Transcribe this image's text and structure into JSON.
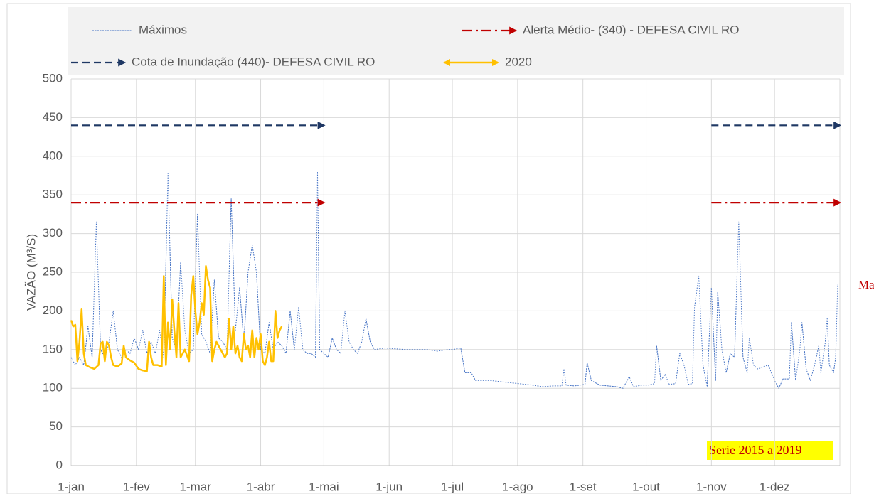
{
  "chart_data": {
    "type": "line",
    "ylabel": "VAZÃO (M³/S)",
    "xlim": [
      1,
      366
    ],
    "ylim": [
      0,
      500
    ],
    "yticks": [
      0,
      50,
      100,
      150,
      200,
      250,
      300,
      350,
      400,
      450,
      500
    ],
    "xticks": [
      {
        "value": 1,
        "label": "1-jan"
      },
      {
        "value": 32,
        "label": "1-fev"
      },
      {
        "value": 60,
        "label": "1-mar"
      },
      {
        "value": 91,
        "label": "1-abr"
      },
      {
        "value": 121,
        "label": "1-mai"
      },
      {
        "value": 152,
        "label": "1-jun"
      },
      {
        "value": 182,
        "label": "1-jul"
      },
      {
        "value": 213,
        "label": "1-ago"
      },
      {
        "value": 244,
        "label": "1-set"
      },
      {
        "value": 274,
        "label": "1-out"
      },
      {
        "value": 305,
        "label": "1-nov"
      },
      {
        "value": 335,
        "label": "1-dez"
      }
    ],
    "grid": true,
    "annotations": [
      "Max",
      "Serie 2015 a 2019"
    ],
    "series": [
      {
        "name": "Máximos",
        "color": "#4472c4",
        "style": "dotted",
        "x": [
          1,
          3,
          5,
          7,
          9,
          11,
          13,
          15,
          17,
          19,
          21,
          23,
          25,
          27,
          29,
          31,
          33,
          35,
          37,
          39,
          41,
          43,
          45,
          47,
          49,
          51,
          53,
          55,
          57,
          59,
          61,
          63,
          65,
          67,
          69,
          71,
          73,
          75,
          77,
          79,
          81,
          83,
          85,
          87,
          89,
          91,
          93,
          95,
          97,
          99,
          101,
          103,
          105,
          107,
          109,
          111,
          113,
          115,
          117,
          118,
          119,
          121,
          123,
          125,
          127,
          129,
          131,
          133,
          135,
          137,
          139,
          141,
          143,
          145,
          150,
          160,
          170,
          175,
          180,
          182,
          186,
          188,
          191,
          193,
          200,
          210,
          220,
          225,
          230,
          234,
          235,
          236,
          240,
          245,
          246,
          248,
          252,
          260,
          263,
          266,
          268,
          272,
          275,
          278,
          279,
          281,
          283,
          285,
          288,
          290,
          292,
          294,
          296,
          297,
          299,
          301,
          303,
          305,
          307,
          308,
          310,
          312,
          314,
          316,
          318,
          320,
          322,
          323,
          325,
          327,
          330,
          332,
          335,
          337,
          339,
          342,
          343,
          345,
          347,
          348,
          350,
          352,
          354,
          356,
          357,
          359,
          360,
          361,
          363,
          364,
          365
        ],
        "values": [
          140,
          130,
          140,
          130,
          180,
          140,
          315,
          150,
          140,
          160,
          200,
          150,
          140,
          150,
          145,
          165,
          150,
          175,
          145,
          160,
          145,
          175,
          140,
          378,
          165,
          150,
          263,
          175,
          145,
          150,
          325,
          170,
          160,
          145,
          240,
          165,
          160,
          150,
          345,
          175,
          230,
          160,
          250,
          285,
          250,
          150,
          145,
          185,
          150,
          160,
          155,
          145,
          200,
          150,
          205,
          150,
          145,
          145,
          140,
          380,
          150,
          145,
          140,
          165,
          150,
          145,
          200,
          160,
          150,
          145,
          160,
          190,
          160,
          150,
          152,
          150,
          150,
          148,
          150,
          150,
          152,
          120,
          120,
          110,
          110,
          107,
          104,
          102,
          103,
          103,
          125,
          104,
          103,
          105,
          133,
          110,
          104,
          102,
          100,
          115,
          102,
          104,
          104,
          106,
          155,
          110,
          118,
          105,
          106,
          145,
          130,
          105,
          106,
          205,
          245,
          130,
          102,
          230,
          110,
          225,
          150,
          120,
          145,
          140,
          315,
          140,
          120,
          165,
          130,
          125,
          128,
          130,
          110,
          100,
          112,
          112,
          185,
          110,
          150,
          185,
          125,
          110,
          130,
          155,
          120,
          158,
          190,
          130,
          120,
          140,
          235
        ]
      },
      {
        "name": "Alerta Médio-  (340) - DEFESA CIVIL RO",
        "color": "#c00000",
        "style": "dashdot",
        "x": [
          1,
          121,
          213,
          305,
          366
        ],
        "values": [
          340,
          340,
          null,
          340,
          340
        ]
      },
      {
        "name": "Cota de Inundação  (440)- DEFESA CIVIL RO",
        "color": "#1f3864",
        "style": "dashed",
        "x": [
          1,
          121,
          213,
          305,
          366
        ],
        "values": [
          440,
          440,
          null,
          440,
          440
        ]
      },
      {
        "name": "2020",
        "color": "#ffc000",
        "style": "solid",
        "x": [
          1,
          2,
          3,
          4,
          5,
          6,
          7,
          8,
          10,
          12,
          14,
          15,
          16,
          17,
          18,
          19,
          20,
          21,
          23,
          25,
          26,
          27,
          29,
          31,
          33,
          35,
          37,
          38,
          39,
          40,
          42,
          44,
          45,
          46,
          47,
          48,
          49,
          50,
          51,
          52,
          53,
          55,
          57,
          58,
          59,
          60,
          61,
          62,
          63,
          64,
          65,
          66,
          67,
          68,
          69,
          70,
          71,
          72,
          74,
          75,
          76,
          77,
          78,
          79,
          80,
          81,
          82,
          83,
          84,
          85,
          86,
          87,
          88,
          89,
          90,
          91,
          92,
          93,
          94,
          95,
          96,
          97,
          98,
          99,
          100,
          101
        ],
        "values": [
          188,
          180,
          182,
          135,
          160,
          202,
          145,
          130,
          127,
          125,
          130,
          158,
          160,
          135,
          160,
          155,
          140,
          130,
          128,
          132,
          155,
          140,
          136,
          133,
          125,
          123,
          122,
          160,
          140,
          130,
          130,
          128,
          245,
          130,
          185,
          150,
          215,
          175,
          140,
          210,
          140,
          150,
          135,
          220,
          245,
          200,
          170,
          185,
          210,
          195,
          258,
          240,
          230,
          135,
          150,
          160,
          155,
          150,
          140,
          145,
          190,
          150,
          180,
          145,
          155,
          140,
          135,
          170,
          150,
          155,
          140,
          175,
          140,
          165,
          150,
          170,
          135,
          130,
          140,
          160,
          135,
          135,
          200,
          165,
          175,
          180
        ]
      }
    ]
  }
}
